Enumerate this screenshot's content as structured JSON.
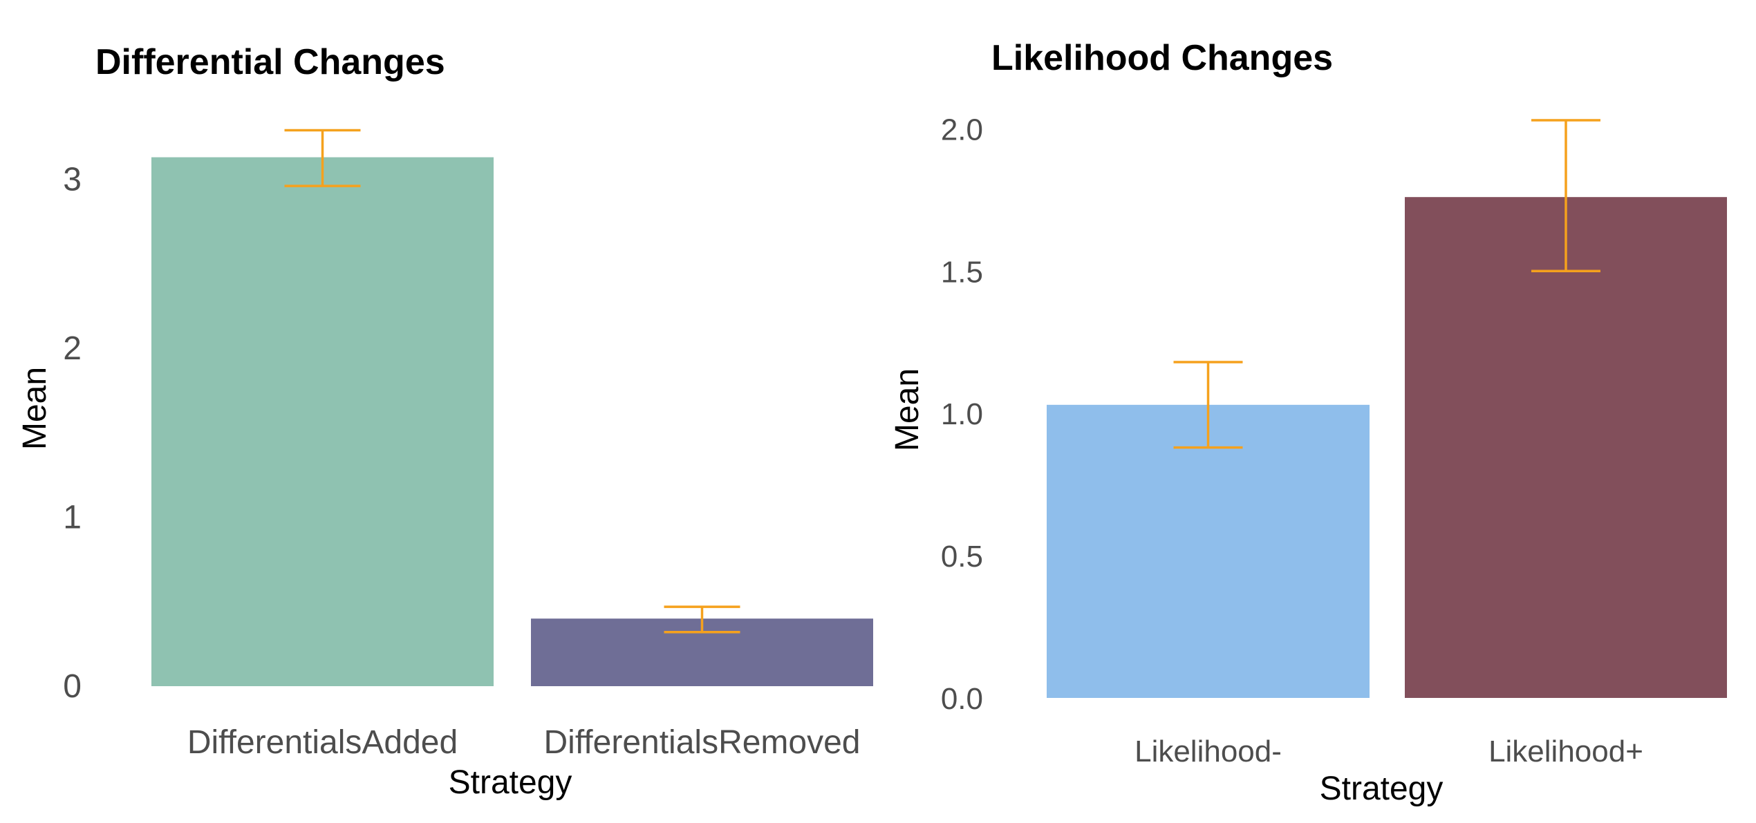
{
  "chart_data": [
    {
      "type": "bar",
      "title": "Differential Changes",
      "xlabel": "Strategy",
      "ylabel": "Mean",
      "categories": [
        "DifferentialsAdded",
        "DifferentialsRemoved"
      ],
      "values": [
        3.13,
        0.4
      ],
      "error_low": [
        2.96,
        0.32
      ],
      "error_high": [
        3.29,
        0.47
      ],
      "colors": [
        "#8fc2b1",
        "#6f6e96"
      ],
      "error_color": "#f5a11d",
      "ylim": [
        0,
        3.3
      ],
      "yticks": [
        "0",
        "1",
        "2",
        "3"
      ],
      "ytick_values": [
        0,
        1,
        2,
        3
      ],
      "grid": false
    },
    {
      "type": "bar",
      "title": "Likelihood Changes",
      "xlabel": "Strategy",
      "ylabel": "Mean",
      "categories": [
        "Likelihood-",
        "Likelihood+"
      ],
      "values": [
        1.03,
        1.76
      ],
      "error_low": [
        0.88,
        1.5
      ],
      "error_high": [
        1.18,
        2.03
      ],
      "colors": [
        "#8fbeeb",
        "#824f5b"
      ],
      "error_color": "#f5a11d",
      "ylim": [
        0,
        2.03
      ],
      "yticks": [
        "0.0",
        "0.5",
        "1.0",
        "1.5",
        "2.0"
      ],
      "ytick_values": [
        0,
        0.5,
        1.0,
        1.5,
        2.0
      ],
      "grid": false
    }
  ]
}
